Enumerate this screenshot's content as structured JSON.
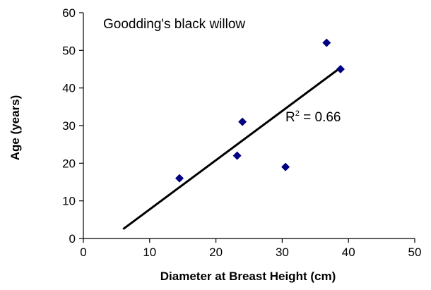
{
  "chart_data": {
    "type": "scatter",
    "title": "",
    "annotation": "Goodding's black willow",
    "r_squared": {
      "prefix": "R",
      "sup": "2",
      "rest": " = 0.66"
    },
    "xlabel": "Diameter at Breast Height (cm)",
    "ylabel": "Age (years)",
    "xlim": [
      0,
      50
    ],
    "ylim": [
      0,
      60
    ],
    "xticks": [
      0,
      10,
      20,
      30,
      40,
      50
    ],
    "yticks": [
      0,
      10,
      20,
      30,
      40,
      50,
      60
    ],
    "grid": false,
    "marker_color": "#000080",
    "line_color": "#000000",
    "points": [
      {
        "x": 14.5,
        "y": 16
      },
      {
        "x": 23.2,
        "y": 22
      },
      {
        "x": 24.0,
        "y": 31
      },
      {
        "x": 30.5,
        "y": 19
      },
      {
        "x": 36.7,
        "y": 52
      },
      {
        "x": 38.8,
        "y": 45
      }
    ],
    "trendline": {
      "x": [
        6,
        38.5
      ],
      "y": [
        2.5,
        45
      ]
    }
  }
}
